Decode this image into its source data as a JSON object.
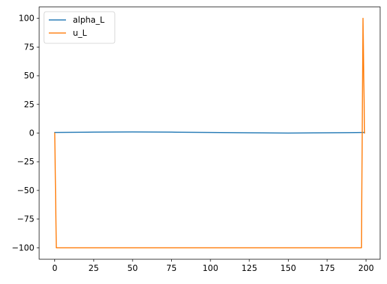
{
  "chart_data": {
    "type": "line",
    "title": "",
    "xlabel": "",
    "ylabel": "",
    "xlim": [
      -10,
      209
    ],
    "ylim": [
      -110,
      110
    ],
    "xticks": [
      0,
      25,
      50,
      75,
      100,
      125,
      150,
      175,
      200
    ],
    "yticks": [
      -100,
      -75,
      -50,
      -25,
      0,
      25,
      50,
      75,
      100
    ],
    "grid": false,
    "legend_position": "top-left",
    "series": [
      {
        "name": "alpha_L",
        "color": "#1f77b4",
        "x": [
          0,
          25,
          50,
          75,
          100,
          125,
          150,
          175,
          198,
          199
        ],
        "y": [
          0.5,
          0.8,
          1.0,
          0.8,
          0.5,
          0.2,
          0.0,
          0.2,
          0.5,
          0.5
        ]
      },
      {
        "name": "u_L",
        "color": "#ff7f0e",
        "x": [
          0,
          1,
          197,
          198,
          199
        ],
        "y": [
          0,
          -100,
          -100,
          100,
          0
        ]
      }
    ]
  }
}
